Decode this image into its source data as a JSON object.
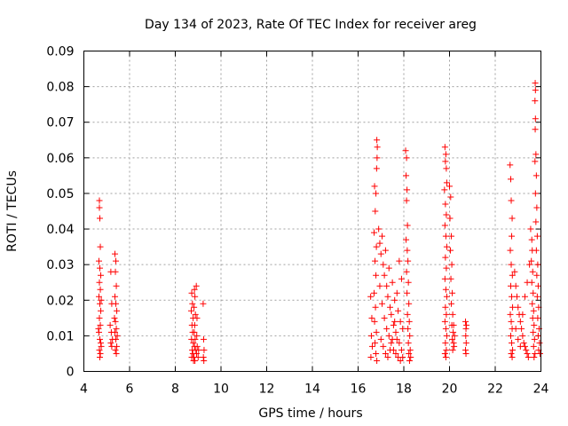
{
  "chart_data": {
    "type": "scatter",
    "title": "Day 134 of 2023, Rate Of TEC Index for receiver areg",
    "xlabel": "GPS time / hours",
    "ylabel": "ROTI / TECUs",
    "xlim": [
      4,
      24
    ],
    "ylim": [
      0,
      0.09
    ],
    "xticks": [
      "4",
      "6",
      "8",
      "10",
      "12",
      "14",
      "16",
      "18",
      "20",
      "22",
      "24"
    ],
    "yticks": [
      "0",
      "0.01",
      "0.02",
      "0.03",
      "0.04",
      "0.05",
      "0.06",
      "0.07",
      "0.08",
      "0.09"
    ],
    "grid": true,
    "marker": "plus",
    "color": "#ff0000",
    "series": [
      {
        "points": [
          [
            4.68,
            0.048
          ],
          [
            4.68,
            0.046
          ],
          [
            4.7,
            0.043
          ],
          [
            4.72,
            0.035
          ],
          [
            4.66,
            0.031
          ],
          [
            4.7,
            0.029
          ],
          [
            4.74,
            0.027
          ],
          [
            4.68,
            0.025
          ],
          [
            4.72,
            0.023
          ],
          [
            4.66,
            0.021
          ],
          [
            4.7,
            0.019
          ],
          [
            4.74,
            0.017
          ],
          [
            4.68,
            0.015
          ],
          [
            4.72,
            0.013
          ],
          [
            4.66,
            0.011
          ],
          [
            4.7,
            0.009
          ],
          [
            4.74,
            0.008
          ],
          [
            4.68,
            0.006
          ],
          [
            4.72,
            0.005
          ],
          [
            4.7,
            0.004
          ],
          [
            4.76,
            0.007
          ],
          [
            4.64,
            0.012
          ],
          [
            4.76,
            0.02
          ],
          [
            5.18,
            0.028
          ],
          [
            5.22,
            0.019
          ],
          [
            5.15,
            0.013
          ],
          [
            5.2,
            0.011
          ],
          [
            5.25,
            0.009
          ],
          [
            5.18,
            0.008
          ],
          [
            5.22,
            0.007
          ],
          [
            5.36,
            0.033
          ],
          [
            5.4,
            0.031
          ],
          [
            5.38,
            0.028
          ],
          [
            5.42,
            0.024
          ],
          [
            5.36,
            0.021
          ],
          [
            5.4,
            0.019
          ],
          [
            5.44,
            0.017
          ],
          [
            5.38,
            0.014
          ],
          [
            5.42,
            0.012
          ],
          [
            5.36,
            0.011
          ],
          [
            5.4,
            0.009
          ],
          [
            5.44,
            0.007
          ],
          [
            5.38,
            0.006
          ],
          [
            5.42,
            0.005
          ],
          [
            5.46,
            0.01
          ],
          [
            5.34,
            0.015
          ],
          [
            8.72,
            0.022
          ],
          [
            8.75,
            0.019
          ],
          [
            8.7,
            0.017
          ],
          [
            8.78,
            0.015
          ],
          [
            8.73,
            0.013
          ],
          [
            8.76,
            0.011
          ],
          [
            8.71,
            0.009
          ],
          [
            8.79,
            0.008
          ],
          [
            8.74,
            0.006
          ],
          [
            8.77,
            0.005
          ],
          [
            8.72,
            0.004
          ],
          [
            8.8,
            0.003
          ],
          [
            8.84,
            0.023
          ],
          [
            8.86,
            0.021
          ],
          [
            8.82,
            0.018
          ],
          [
            8.88,
            0.016
          ],
          [
            8.85,
            0.013
          ],
          [
            8.83,
            0.011
          ],
          [
            8.87,
            0.009
          ],
          [
            8.84,
            0.007
          ],
          [
            8.88,
            0.006
          ],
          [
            8.82,
            0.004
          ],
          [
            8.86,
            0.003
          ],
          [
            8.92,
            0.024
          ],
          [
            8.95,
            0.015
          ],
          [
            8.94,
            0.01
          ],
          [
            8.96,
            0.007
          ],
          [
            8.93,
            0.005
          ],
          [
            9.0,
            0.004
          ],
          [
            9.02,
            0.006
          ],
          [
            9.22,
            0.019
          ],
          [
            9.24,
            0.009
          ],
          [
            9.26,
            0.006
          ],
          [
            9.23,
            0.004
          ],
          [
            9.25,
            0.003
          ],
          [
            16.55,
            0.021
          ],
          [
            16.6,
            0.015
          ],
          [
            16.58,
            0.01
          ],
          [
            16.62,
            0.007
          ],
          [
            16.56,
            0.004
          ],
          [
            16.72,
            0.052
          ],
          [
            16.78,
            0.05
          ],
          [
            16.75,
            0.045
          ],
          [
            16.7,
            0.039
          ],
          [
            16.8,
            0.035
          ],
          [
            16.74,
            0.031
          ],
          [
            16.78,
            0.027
          ],
          [
            16.7,
            0.022
          ],
          [
            16.76,
            0.018
          ],
          [
            16.72,
            0.014
          ],
          [
            16.8,
            0.011
          ],
          [
            16.74,
            0.008
          ],
          [
            16.78,
            0.005
          ],
          [
            16.82,
            0.003
          ],
          [
            16.82,
            0.065
          ],
          [
            16.84,
            0.063
          ],
          [
            16.83,
            0.06
          ],
          [
            16.81,
            0.057
          ],
          [
            16.9,
            0.04
          ],
          [
            16.95,
            0.036
          ],
          [
            17.0,
            0.033
          ],
          [
            17.05,
            0.038
          ],
          [
            17.1,
            0.03
          ],
          [
            17.15,
            0.027
          ],
          [
            17.2,
            0.034
          ],
          [
            17.25,
            0.024
          ],
          [
            17.3,
            0.021
          ],
          [
            17.35,
            0.029
          ],
          [
            17.4,
            0.018
          ],
          [
            17.45,
            0.016
          ],
          [
            17.5,
            0.025
          ],
          [
            17.55,
            0.013
          ],
          [
            17.6,
            0.02
          ],
          [
            17.65,
            0.011
          ],
          [
            17.7,
            0.009
          ],
          [
            17.75,
            0.017
          ],
          [
            17.8,
            0.008
          ],
          [
            17.85,
            0.014
          ],
          [
            17.9,
            0.006
          ],
          [
            17.95,
            0.012
          ],
          [
            16.95,
            0.024
          ],
          [
            17.05,
            0.019
          ],
          [
            17.15,
            0.015
          ],
          [
            17.25,
            0.012
          ],
          [
            17.35,
            0.01
          ],
          [
            17.45,
            0.008
          ],
          [
            17.55,
            0.006
          ],
          [
            17.65,
            0.005
          ],
          [
            17.75,
            0.004
          ],
          [
            17.85,
            0.003
          ],
          [
            17.95,
            0.004
          ],
          [
            17.0,
            0.009
          ],
          [
            17.1,
            0.007
          ],
          [
            17.2,
            0.005
          ],
          [
            17.3,
            0.004
          ],
          [
            17.4,
            0.006
          ],
          [
            17.5,
            0.009
          ],
          [
            17.6,
            0.014
          ],
          [
            17.7,
            0.022
          ],
          [
            17.8,
            0.031
          ],
          [
            17.9,
            0.026
          ],
          [
            18.08,
            0.062
          ],
          [
            18.12,
            0.06
          ],
          [
            18.1,
            0.055
          ],
          [
            18.14,
            0.051
          ],
          [
            18.12,
            0.048
          ],
          [
            18.16,
            0.041
          ],
          [
            18.1,
            0.037
          ],
          [
            18.15,
            0.034
          ],
          [
            18.18,
            0.031
          ],
          [
            18.12,
            0.028
          ],
          [
            18.2,
            0.025
          ],
          [
            18.14,
            0.022
          ],
          [
            18.22,
            0.019
          ],
          [
            18.16,
            0.016
          ],
          [
            18.24,
            0.014
          ],
          [
            18.18,
            0.012
          ],
          [
            18.26,
            0.01
          ],
          [
            18.2,
            0.008
          ],
          [
            18.28,
            0.006
          ],
          [
            18.22,
            0.005
          ],
          [
            18.3,
            0.004
          ],
          [
            18.25,
            0.003
          ],
          [
            19.8,
            0.063
          ],
          [
            19.84,
            0.061
          ],
          [
            19.82,
            0.059
          ],
          [
            19.86,
            0.057
          ],
          [
            19.88,
            0.053
          ],
          [
            19.78,
            0.051
          ],
          [
            19.82,
            0.047
          ],
          [
            19.86,
            0.044
          ],
          [
            19.8,
            0.041
          ],
          [
            19.84,
            0.038
          ],
          [
            19.88,
            0.035
          ],
          [
            19.82,
            0.032
          ],
          [
            19.86,
            0.029
          ],
          [
            19.8,
            0.026
          ],
          [
            19.84,
            0.023
          ],
          [
            19.88,
            0.021
          ],
          [
            19.82,
            0.018
          ],
          [
            19.86,
            0.016
          ],
          [
            19.8,
            0.014
          ],
          [
            19.84,
            0.012
          ],
          [
            19.88,
            0.01
          ],
          [
            19.82,
            0.008
          ],
          [
            19.86,
            0.006
          ],
          [
            19.8,
            0.005
          ],
          [
            19.84,
            0.004
          ],
          [
            20.0,
            0.052
          ],
          [
            20.05,
            0.049
          ],
          [
            20.02,
            0.043
          ],
          [
            20.08,
            0.038
          ],
          [
            20.04,
            0.034
          ],
          [
            20.1,
            0.03
          ],
          [
            20.06,
            0.026
          ],
          [
            20.12,
            0.022
          ],
          [
            20.08,
            0.019
          ],
          [
            20.14,
            0.016
          ],
          [
            20.1,
            0.013
          ],
          [
            20.16,
            0.011
          ],
          [
            20.12,
            0.009
          ],
          [
            20.18,
            0.008
          ],
          [
            20.14,
            0.006
          ],
          [
            20.2,
            0.007
          ],
          [
            20.22,
            0.01
          ],
          [
            20.18,
            0.013
          ],
          [
            20.7,
            0.014
          ],
          [
            20.72,
            0.012
          ],
          [
            20.71,
            0.01
          ],
          [
            20.73,
            0.008
          ],
          [
            20.7,
            0.006
          ],
          [
            20.72,
            0.005
          ],
          [
            20.74,
            0.013
          ],
          [
            22.65,
            0.058
          ],
          [
            22.68,
            0.054
          ],
          [
            22.7,
            0.048
          ],
          [
            22.74,
            0.043
          ],
          [
            22.72,
            0.038
          ],
          [
            22.66,
            0.034
          ],
          [
            22.7,
            0.03
          ],
          [
            22.75,
            0.027
          ],
          [
            22.68,
            0.024
          ],
          [
            22.72,
            0.021
          ],
          [
            22.76,
            0.018
          ],
          [
            22.66,
            0.016
          ],
          [
            22.7,
            0.014
          ],
          [
            22.74,
            0.012
          ],
          [
            22.68,
            0.01
          ],
          [
            22.72,
            0.008
          ],
          [
            22.76,
            0.006
          ],
          [
            22.7,
            0.005
          ],
          [
            22.74,
            0.004
          ],
          [
            22.85,
            0.028
          ],
          [
            22.9,
            0.024
          ],
          [
            22.95,
            0.021
          ],
          [
            23.0,
            0.018
          ],
          [
            23.05,
            0.016
          ],
          [
            23.1,
            0.014
          ],
          [
            23.15,
            0.012
          ],
          [
            23.2,
            0.01
          ],
          [
            23.25,
            0.008
          ],
          [
            23.3,
            0.007
          ],
          [
            23.35,
            0.006
          ],
          [
            23.4,
            0.005
          ],
          [
            23.45,
            0.004
          ],
          [
            22.9,
            0.012
          ],
          [
            23.0,
            0.009
          ],
          [
            23.1,
            0.007
          ],
          [
            23.2,
            0.016
          ],
          [
            23.3,
            0.021
          ],
          [
            23.4,
            0.025
          ],
          [
            23.5,
            0.03
          ],
          [
            23.55,
            0.04
          ],
          [
            23.6,
            0.037
          ],
          [
            23.62,
            0.034
          ],
          [
            23.58,
            0.031
          ],
          [
            23.64,
            0.028
          ],
          [
            23.6,
            0.025
          ],
          [
            23.66,
            0.022
          ],
          [
            23.62,
            0.019
          ],
          [
            23.68,
            0.017
          ],
          [
            23.64,
            0.015
          ],
          [
            23.7,
            0.013
          ],
          [
            23.66,
            0.011
          ],
          [
            23.72,
            0.009
          ],
          [
            23.68,
            0.007
          ],
          [
            23.74,
            0.005
          ],
          [
            23.7,
            0.004
          ],
          [
            23.75,
            0.081
          ],
          [
            23.76,
            0.079
          ],
          [
            23.74,
            0.076
          ],
          [
            23.76,
            0.071
          ],
          [
            23.75,
            0.068
          ],
          [
            23.78,
            0.061
          ],
          [
            23.74,
            0.059
          ],
          [
            23.8,
            0.055
          ],
          [
            23.76,
            0.05
          ],
          [
            23.82,
            0.046
          ],
          [
            23.78,
            0.042
          ],
          [
            23.84,
            0.038
          ],
          [
            23.8,
            0.034
          ],
          [
            23.86,
            0.03
          ],
          [
            23.82,
            0.027
          ],
          [
            23.88,
            0.024
          ],
          [
            23.84,
            0.021
          ],
          [
            23.9,
            0.018
          ],
          [
            23.86,
            0.015
          ],
          [
            23.92,
            0.012
          ],
          [
            23.88,
            0.01
          ],
          [
            23.94,
            0.008
          ],
          [
            23.9,
            0.006
          ],
          [
            23.96,
            0.005
          ]
        ]
      }
    ]
  }
}
